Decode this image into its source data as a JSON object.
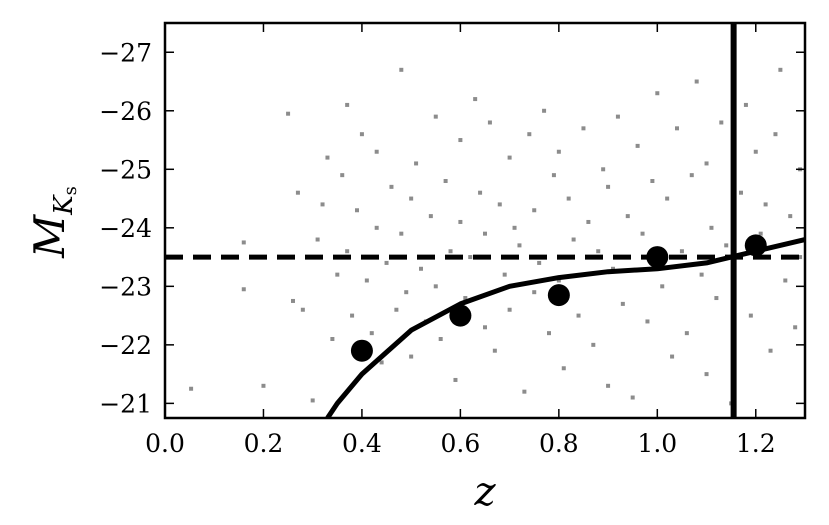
{
  "chart_data": {
    "type": "scatter",
    "title": "",
    "xlabel": "z",
    "ylabel_main": "M",
    "ylabel_sub_italic": "K",
    "ylabel_subsub": "s",
    "xlim": [
      0.0,
      1.3
    ],
    "ylim": [
      -20.75,
      -27.5
    ],
    "y_inverted": true,
    "grid": false,
    "x_ticks": [
      0.0,
      0.2,
      0.4,
      0.6,
      0.8,
      1.0,
      1.2
    ],
    "x_tick_labels": [
      "0.0",
      "0.2",
      "0.4",
      "0.6",
      "0.8",
      "1.0",
      "1.2"
    ],
    "y_ticks": [
      -21,
      -22,
      -23,
      -24,
      -25,
      -26,
      -27
    ],
    "y_tick_labels": [
      "−21",
      "−22",
      "−23",
      "−24",
      "−25",
      "−26",
      "−27"
    ],
    "colors": {
      "scatter": "#8c8c8c",
      "line": "#000000",
      "markers": "#000000"
    },
    "reference_lines": {
      "horizontal_y": -23.5,
      "vertical_x": 1.155
    },
    "binned_points": [
      {
        "x": 0.4,
        "y": -21.9
      },
      {
        "x": 0.6,
        "y": -22.5
      },
      {
        "x": 0.8,
        "y": -22.85
      },
      {
        "x": 1.0,
        "y": -23.5
      },
      {
        "x": 1.2,
        "y": -23.7
      }
    ],
    "curve": [
      {
        "x": 0.33,
        "y": -20.75
      },
      {
        "x": 0.35,
        "y": -21.0
      },
      {
        "x": 0.4,
        "y": -21.5
      },
      {
        "x": 0.5,
        "y": -22.25
      },
      {
        "x": 0.6,
        "y": -22.7
      },
      {
        "x": 0.7,
        "y": -23.0
      },
      {
        "x": 0.8,
        "y": -23.15
      },
      {
        "x": 0.9,
        "y": -23.25
      },
      {
        "x": 1.0,
        "y": -23.3
      },
      {
        "x": 1.1,
        "y": -23.4
      },
      {
        "x": 1.2,
        "y": -23.6
      },
      {
        "x": 1.3,
        "y": -23.8
      }
    ],
    "scatter_points": [
      {
        "x": 0.053,
        "y": -21.25
      },
      {
        "x": 0.16,
        "y": -23.75
      },
      {
        "x": 0.16,
        "y": -22.95
      },
      {
        "x": 0.2,
        "y": -21.3
      },
      {
        "x": 0.25,
        "y": -25.95
      },
      {
        "x": 0.26,
        "y": -22.75
      },
      {
        "x": 0.27,
        "y": -24.6
      },
      {
        "x": 0.28,
        "y": -22.6
      },
      {
        "x": 0.3,
        "y": -21.05
      },
      {
        "x": 0.31,
        "y": -23.8
      },
      {
        "x": 0.32,
        "y": -24.4
      },
      {
        "x": 0.33,
        "y": -25.2
      },
      {
        "x": 0.34,
        "y": -22.1
      },
      {
        "x": 0.35,
        "y": -23.2
      },
      {
        "x": 0.36,
        "y": -24.9
      },
      {
        "x": 0.37,
        "y": -26.1
      },
      {
        "x": 0.37,
        "y": -23.6
      },
      {
        "x": 0.38,
        "y": -22.5
      },
      {
        "x": 0.39,
        "y": -24.3
      },
      {
        "x": 0.4,
        "y": -25.6
      },
      {
        "x": 0.41,
        "y": -23.1
      },
      {
        "x": 0.42,
        "y": -22.2
      },
      {
        "x": 0.43,
        "y": -24.0
      },
      {
        "x": 0.43,
        "y": -25.3
      },
      {
        "x": 0.44,
        "y": -21.7
      },
      {
        "x": 0.45,
        "y": -23.4
      },
      {
        "x": 0.46,
        "y": -24.7
      },
      {
        "x": 0.47,
        "y": -22.6
      },
      {
        "x": 0.48,
        "y": -26.7
      },
      {
        "x": 0.48,
        "y": -23.9
      },
      {
        "x": 0.49,
        "y": -22.9
      },
      {
        "x": 0.5,
        "y": -24.5
      },
      {
        "x": 0.5,
        "y": -21.8
      },
      {
        "x": 0.51,
        "y": -25.1
      },
      {
        "x": 0.52,
        "y": -23.3
      },
      {
        "x": 0.53,
        "y": -22.4
      },
      {
        "x": 0.54,
        "y": -24.2
      },
      {
        "x": 0.55,
        "y": -25.9
      },
      {
        "x": 0.55,
        "y": -23.0
      },
      {
        "x": 0.56,
        "y": -22.1
      },
      {
        "x": 0.57,
        "y": -24.8
      },
      {
        "x": 0.58,
        "y": -23.6
      },
      {
        "x": 0.59,
        "y": -21.4
      },
      {
        "x": 0.6,
        "y": -25.5
      },
      {
        "x": 0.6,
        "y": -24.1
      },
      {
        "x": 0.61,
        "y": -22.8
      },
      {
        "x": 0.62,
        "y": -23.5
      },
      {
        "x": 0.63,
        "y": -26.2
      },
      {
        "x": 0.64,
        "y": -24.6
      },
      {
        "x": 0.65,
        "y": -22.3
      },
      {
        "x": 0.65,
        "y": -23.9
      },
      {
        "x": 0.66,
        "y": -25.8
      },
      {
        "x": 0.67,
        "y": -21.9
      },
      {
        "x": 0.68,
        "y": -24.4
      },
      {
        "x": 0.69,
        "y": -23.2
      },
      {
        "x": 0.7,
        "y": -25.2
      },
      {
        "x": 0.7,
        "y": -22.6
      },
      {
        "x": 0.71,
        "y": -24.0
      },
      {
        "x": 0.72,
        "y": -23.7
      },
      {
        "x": 0.73,
        "y": -21.2
      },
      {
        "x": 0.74,
        "y": -25.6
      },
      {
        "x": 0.75,
        "y": -22.9
      },
      {
        "x": 0.75,
        "y": -24.3
      },
      {
        "x": 0.76,
        "y": -23.4
      },
      {
        "x": 0.77,
        "y": -26.0
      },
      {
        "x": 0.78,
        "y": -22.2
      },
      {
        "x": 0.79,
        "y": -24.9
      },
      {
        "x": 0.8,
        "y": -23.1
      },
      {
        "x": 0.8,
        "y": -25.3
      },
      {
        "x": 0.81,
        "y": -21.6
      },
      {
        "x": 0.82,
        "y": -24.5
      },
      {
        "x": 0.83,
        "y": -23.8
      },
      {
        "x": 0.84,
        "y": -22.5
      },
      {
        "x": 0.85,
        "y": -25.7
      },
      {
        "x": 0.86,
        "y": -24.1
      },
      {
        "x": 0.87,
        "y": -22.0
      },
      {
        "x": 0.88,
        "y": -23.6
      },
      {
        "x": 0.89,
        "y": -25.0
      },
      {
        "x": 0.9,
        "y": -21.3
      },
      {
        "x": 0.9,
        "y": -24.7
      },
      {
        "x": 0.91,
        "y": -23.3
      },
      {
        "x": 0.92,
        "y": -25.9
      },
      {
        "x": 0.93,
        "y": -22.7
      },
      {
        "x": 0.94,
        "y": -24.2
      },
      {
        "x": 0.95,
        "y": -21.1
      },
      {
        "x": 0.96,
        "y": -25.4
      },
      {
        "x": 0.97,
        "y": -23.9
      },
      {
        "x": 0.98,
        "y": -22.4
      },
      {
        "x": 0.99,
        "y": -24.8
      },
      {
        "x": 1.0,
        "y": -26.3
      },
      {
        "x": 1.01,
        "y": -23.0
      },
      {
        "x": 1.02,
        "y": -24.5
      },
      {
        "x": 1.03,
        "y": -21.8
      },
      {
        "x": 1.04,
        "y": -25.7
      },
      {
        "x": 1.05,
        "y": -23.6
      },
      {
        "x": 1.06,
        "y": -22.2
      },
      {
        "x": 1.07,
        "y": -24.9
      },
      {
        "x": 1.08,
        "y": -26.5
      },
      {
        "x": 1.09,
        "y": -23.2
      },
      {
        "x": 1.1,
        "y": -21.5
      },
      {
        "x": 1.1,
        "y": -25.1
      },
      {
        "x": 1.11,
        "y": -24.0
      },
      {
        "x": 1.12,
        "y": -22.8
      },
      {
        "x": 1.13,
        "y": -25.8
      },
      {
        "x": 1.14,
        "y": -23.7
      },
      {
        "x": 1.15,
        "y": -21.0
      },
      {
        "x": 1.17,
        "y": -24.6
      },
      {
        "x": 1.18,
        "y": -26.1
      },
      {
        "x": 1.19,
        "y": -22.5
      },
      {
        "x": 1.2,
        "y": -25.3
      },
      {
        "x": 1.21,
        "y": -23.9
      },
      {
        "x": 1.22,
        "y": -24.4
      },
      {
        "x": 1.23,
        "y": -21.9
      },
      {
        "x": 1.24,
        "y": -25.6
      },
      {
        "x": 1.25,
        "y": -26.7
      },
      {
        "x": 1.26,
        "y": -23.1
      },
      {
        "x": 1.27,
        "y": -24.2
      },
      {
        "x": 1.28,
        "y": -22.3
      },
      {
        "x": 1.29,
        "y": -25.0
      },
      {
        "x": 1.29,
        "y": -23.5
      }
    ]
  }
}
